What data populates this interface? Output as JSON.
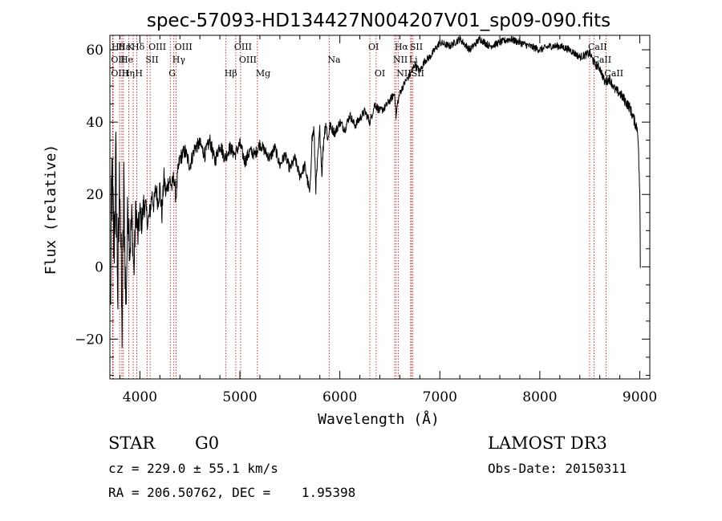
{
  "chart_data": {
    "type": "line",
    "title": "spec-57093-HD134427N004207V01_sp09-090.fits",
    "xlabel": "Wavelength (Å)",
    "ylabel": "Flux (relative)",
    "xlim": [
      3700,
      9100
    ],
    "ylim": [
      -31,
      64
    ],
    "xticks": [
      4000,
      5000,
      6000,
      7000,
      8000,
      9000
    ],
    "xtick_labels": [
      "4000",
      "5000",
      "6000",
      "7000",
      "8000",
      "9000"
    ],
    "yticks": [
      -20,
      0,
      20,
      40,
      60
    ],
    "ytick_labels": [
      "−20",
      "0",
      "20",
      "40",
      "60"
    ],
    "grid": false,
    "series": [
      {
        "name": "spectrum",
        "x": [
          3705,
          3720,
          3740,
          3760,
          3780,
          3800,
          3820,
          3840,
          3860,
          3880,
          3900,
          3920,
          3940,
          3960,
          3980,
          4000,
          4020,
          4040,
          4060,
          4080,
          4100,
          4120,
          4140,
          4160,
          4180,
          4200,
          4220,
          4240,
          4260,
          4280,
          4300,
          4320,
          4340,
          4360,
          4380,
          4400,
          4450,
          4500,
          4550,
          4600,
          4650,
          4700,
          4750,
          4800,
          4850,
          4900,
          4950,
          5000,
          5050,
          5100,
          5150,
          5200,
          5250,
          5300,
          5350,
          5400,
          5450,
          5500,
          5550,
          5600,
          5650,
          5700,
          5720,
          5740,
          5760,
          5780,
          5800,
          5820,
          5840,
          5860,
          5880,
          5900,
          5950,
          6000,
          6050,
          6100,
          6150,
          6200,
          6250,
          6300,
          6350,
          6400,
          6450,
          6500,
          6550,
          6562,
          6575,
          6600,
          6650,
          6700,
          6750,
          6800,
          6850,
          6900,
          6950,
          7000,
          7100,
          7200,
          7300,
          7400,
          7500,
          7600,
          7700,
          7800,
          7900,
          8000,
          8100,
          8200,
          8300,
          8400,
          8500,
          8550,
          8600,
          8650,
          8700,
          8750,
          8800,
          8850,
          8900,
          8950,
          8980,
          9000,
          9005
        ],
        "y": [
          -12,
          25,
          5,
          28,
          -8,
          30,
          -20,
          22,
          -12,
          18,
          5,
          14,
          -2,
          17,
          8,
          15,
          12,
          18,
          16,
          12,
          15,
          20,
          17,
          22,
          18,
          22,
          14,
          25,
          20,
          23,
          24,
          22,
          25,
          19,
          26,
          30,
          32,
          28,
          33,
          34,
          31,
          35,
          29,
          34,
          30,
          33,
          31,
          34,
          29,
          32,
          31,
          34,
          32,
          30,
          33,
          28,
          31,
          27,
          30,
          25,
          28,
          20,
          35,
          38,
          22,
          30,
          38,
          26,
          36,
          40,
          35,
          39,
          37,
          40,
          38,
          42,
          39,
          41,
          43,
          40,
          45,
          43,
          44,
          46,
          48,
          41,
          45,
          48,
          51,
          53,
          56,
          54,
          57,
          58,
          60,
          62,
          61,
          63,
          60,
          63,
          61,
          62,
          63,
          62,
          61,
          60,
          61,
          61,
          60,
          58,
          59,
          56,
          55,
          51,
          52,
          49,
          48,
          46,
          44,
          40,
          38,
          20,
          5
        ],
        "noise": [
          15,
          14,
          14,
          14,
          14,
          13,
          12,
          10,
          9,
          8,
          7,
          6,
          5,
          5,
          5,
          4,
          4,
          4,
          3,
          3,
          3,
          3,
          3,
          3,
          3,
          3,
          3,
          3,
          3,
          2.5,
          2.5,
          2.5,
          2.5,
          2.5,
          2.5,
          2.2,
          2.2,
          2.2,
          2,
          2,
          2,
          2,
          2,
          2,
          2,
          1.8,
          1.8,
          1.8,
          1.8,
          1.8,
          1.6,
          1.6,
          1.6,
          1.6,
          1.5,
          1.5,
          1.5,
          1.5,
          1.5,
          1.4,
          1.4,
          1.8,
          2,
          2,
          2,
          2,
          2,
          2,
          2,
          2,
          1.5,
          1.4,
          1.3,
          1.3,
          1.3,
          1.2,
          1.2,
          1.2,
          1.2,
          1.2,
          1.2,
          1.2,
          1.1,
          1.1,
          1.1,
          1.1,
          1.1,
          1,
          1,
          1,
          1,
          1,
          1,
          1,
          1,
          1,
          1,
          1,
          1,
          1,
          1,
          1,
          1,
          1,
          1,
          1,
          1,
          1,
          1,
          1,
          1.2,
          1.2,
          1.2,
          1.3,
          1.3,
          1.3,
          1.4,
          1.5,
          1.5,
          1.6,
          1.8,
          2,
          2
        ]
      }
    ],
    "lines": [
      {
        "label": "Hδ",
        "x": 3732,
        "row": 0
      },
      {
        "label": "Hε",
        "x": 3797,
        "row": 0
      },
      {
        "label": "K",
        "x": 3889,
        "row": 0
      },
      {
        "label": "Hδ",
        "x": 3933,
        "row": 0
      },
      {
        "label": "OIII",
        "x": 4102,
        "row": 0
      },
      {
        "label": "OIII",
        "x": 4363,
        "row": 0
      },
      {
        "label": "OIII",
        "x": 4959,
        "row": 0
      },
      {
        "label": "OI",
        "x": 6300,
        "row": 0
      },
      {
        "label": "Hα",
        "x": 6563,
        "row": 0
      },
      {
        "label": "SII",
        "x": 6716,
        "row": 0
      },
      {
        "label": "CaII",
        "x": 8498,
        "row": 0
      },
      {
        "label": "OII",
        "x": 3727,
        "row": 1
      },
      {
        "label": "He",
        "x": 3820,
        "row": 1
      },
      {
        "label": "SII",
        "x": 4072,
        "row": 1
      },
      {
        "label": "Hγ",
        "x": 4340,
        "row": 1
      },
      {
        "label": "OIII",
        "x": 5007,
        "row": 1
      },
      {
        "label": "Na",
        "x": 5893,
        "row": 1
      },
      {
        "label": "NII",
        "x": 6548,
        "row": 1
      },
      {
        "label": "Li",
        "x": 6708,
        "row": 1
      },
      {
        "label": "CaII",
        "x": 8542,
        "row": 1
      },
      {
        "label": "OIII",
        "x": 3727,
        "row": 2
      },
      {
        "label": "Hη",
        "x": 3835,
        "row": 2
      },
      {
        "label": "H",
        "x": 3968,
        "row": 2
      },
      {
        "label": "G",
        "x": 4304,
        "row": 2
      },
      {
        "label": "Hβ",
        "x": 4861,
        "row": 2
      },
      {
        "label": "Mg",
        "x": 5175,
        "row": 2
      },
      {
        "label": "OI",
        "x": 6363,
        "row": 2
      },
      {
        "label": "NII",
        "x": 6583,
        "row": 2
      },
      {
        "label": "SII",
        "x": 6731,
        "row": 2
      },
      {
        "label": "CaII",
        "x": 8662,
        "row": 2
      }
    ]
  },
  "info": {
    "object_class": "STAR",
    "subclass": "G0",
    "survey": "LAMOST DR3",
    "redshift": "cz = 229.0 ± 55.1 km/s",
    "obs_date": "Obs-Date: 20150311",
    "coords": "RA = 206.50762, DEC =    1.95398"
  },
  "colors": {
    "line": "#000000",
    "marker": "#c00000",
    "axis": "#000000"
  }
}
